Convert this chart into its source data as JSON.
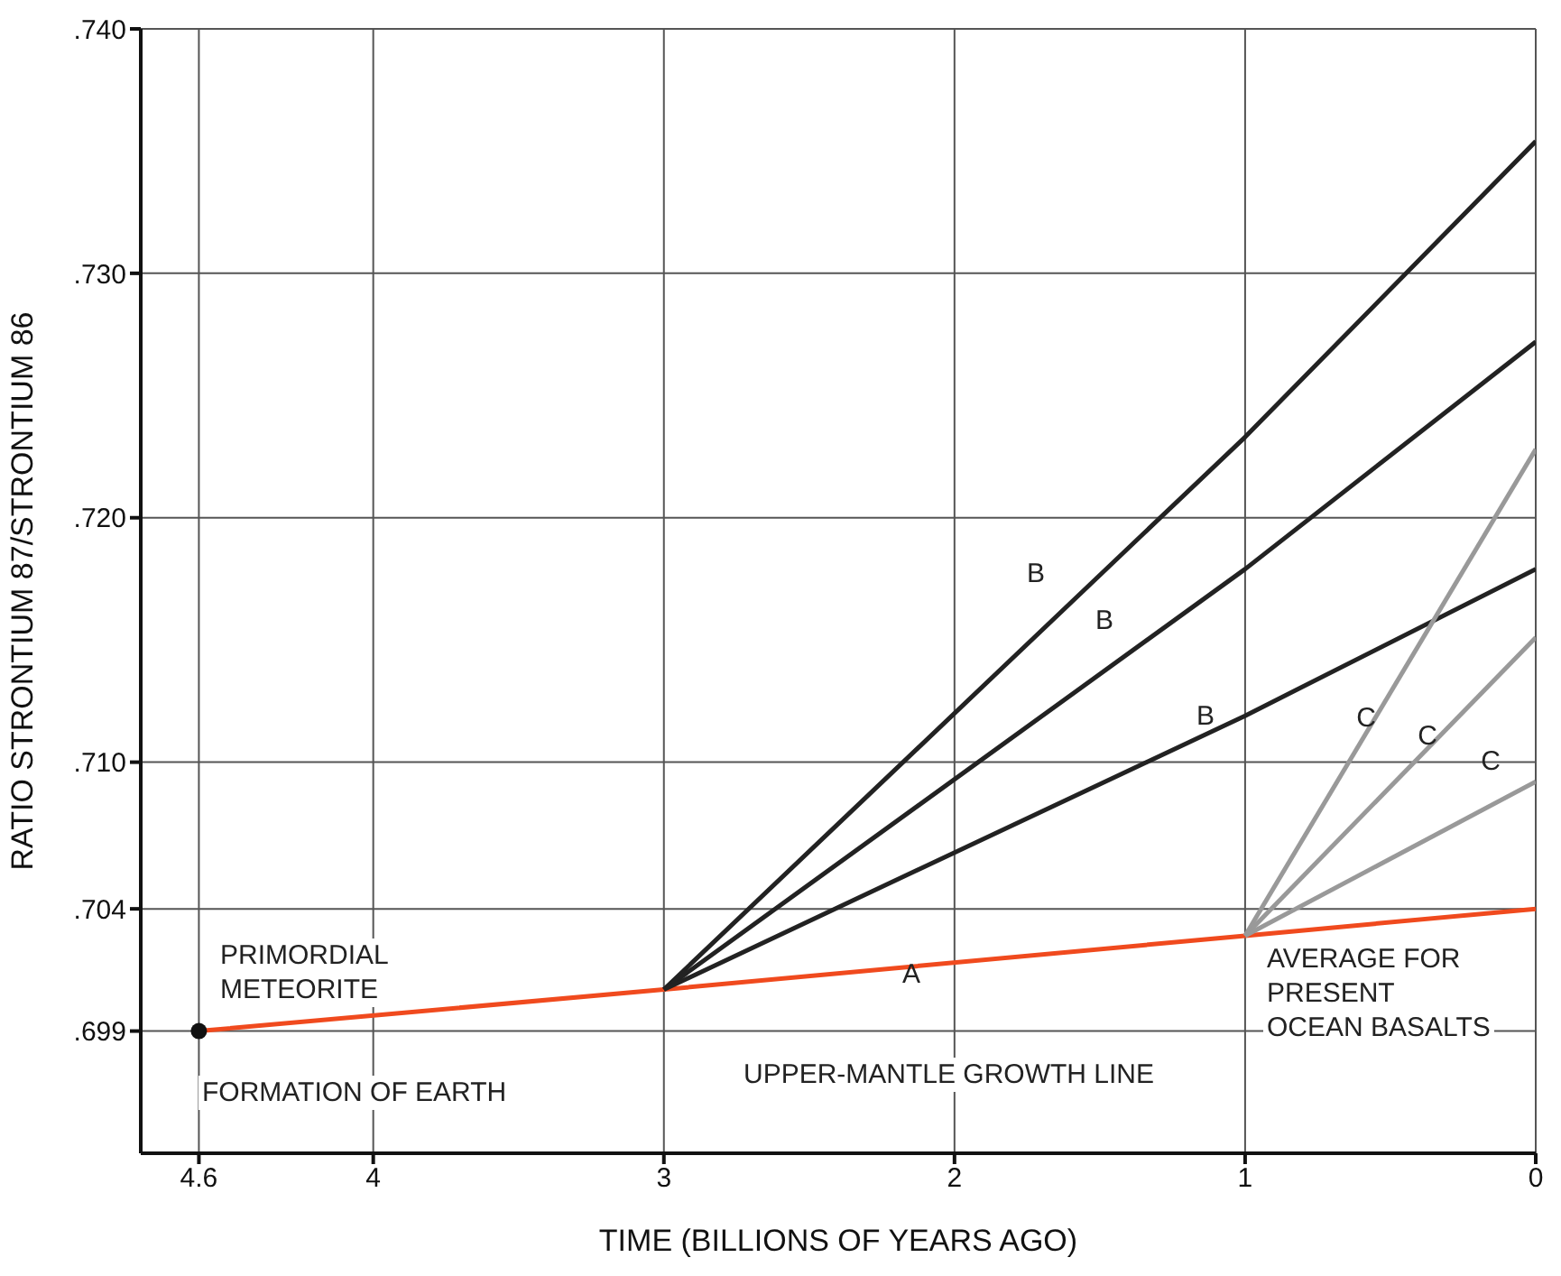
{
  "chart_data": {
    "type": "line",
    "xlabel": "TIME (BILLIONS OF YEARS AGO)",
    "ylabel": "RATIO STRONTIUM 87/STRONTIUM 86",
    "xlim": [
      4.8,
      0
    ],
    "xticks": [
      4.6,
      4,
      3,
      2,
      1,
      0
    ],
    "ylim": [
      0.694,
      0.74
    ],
    "yticks": [
      {
        "value": 0.699,
        "label": ".699"
      },
      {
        "value": 0.704,
        "label": ".704"
      },
      {
        "value": 0.71,
        "label": ".710"
      },
      {
        "value": 0.72,
        "label": ".720"
      },
      {
        "value": 0.73,
        "label": ".730"
      },
      {
        "value": 0.74,
        "label": ".740"
      }
    ],
    "grid": true,
    "marker": "none",
    "line_style": "solid",
    "series": [
      {
        "color": "#f04a1e",
        "x": [
          4.6,
          3,
          1,
          0
        ],
        "values": [
          0.699,
          0.7007,
          0.7029,
          0.704
        ]
      },
      {
        "color": "#222222",
        "x": [
          3,
          1,
          0
        ],
        "values": [
          0.7007,
          0.7233,
          0.7354
        ]
      },
      {
        "color": "#222222",
        "x": [
          3,
          1,
          0
        ],
        "values": [
          0.7007,
          0.7179,
          0.7272
        ]
      },
      {
        "color": "#222222",
        "x": [
          3,
          1,
          0
        ],
        "values": [
          0.7007,
          0.7119,
          0.7179
        ]
      },
      {
        "color": "#999999",
        "x": [
          1,
          0
        ],
        "values": [
          0.7029,
          0.7228
        ]
      },
      {
        "color": "#999999",
        "x": [
          1,
          0
        ],
        "values": [
          0.7029,
          0.7151
        ]
      },
      {
        "color": "#999999",
        "x": [
          1,
          0
        ],
        "values": [
          0.7029,
          0.7092
        ]
      },
      {
        "type": "scatter",
        "marker": "circle",
        "color": "#111111",
        "x": [
          4.6
        ],
        "values": [
          0.699
        ]
      }
    ],
    "annotations": [
      "A",
      "B",
      "B",
      "B",
      "C",
      "C",
      "C",
      "PRIMORDIAL\nMETEORITE",
      "FORMATION OF EARTH",
      "UPPER-MANTLE GROWTH LINE",
      "AVERAGE FOR\nPRESENT\nOCEAN BASALTS"
    ]
  }
}
